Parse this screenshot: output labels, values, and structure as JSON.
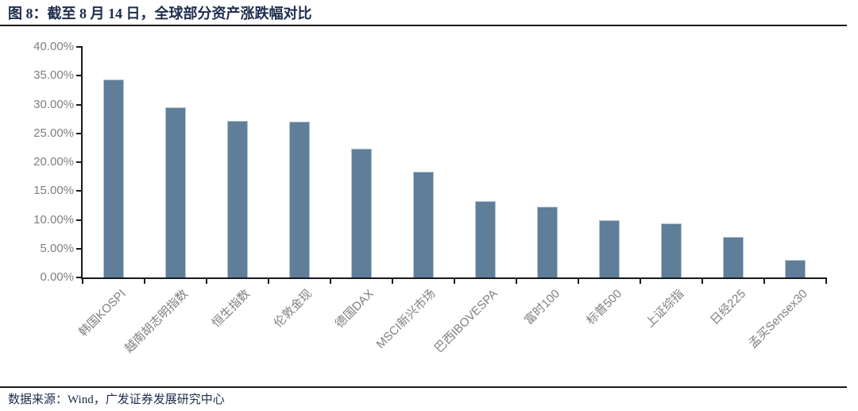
{
  "figure": {
    "title": "图 8：截至 8 月 14 日，全球部分资产涨跌幅对比",
    "source_note": "数据来源：Wind，广发证券发展研究中心"
  },
  "colors": {
    "bar_fill": "#5e7e9a",
    "bar_edge": "#b3c3d1",
    "axis_line": "#1a1a1a",
    "tick_label": "#808080",
    "title_text": "#1e2d4d",
    "divider": "#1a1a1a"
  },
  "chart_data": {
    "type": "bar",
    "title": "截至8月14日，全球部分资产涨跌幅对比",
    "categories": [
      "韩国KOSPI",
      "越南胡志明指数",
      "恒生指数",
      "伦敦金现",
      "德国DAX",
      "MSCI新兴市场",
      "巴西IBOVESPA",
      "富时100",
      "标普500",
      "上证综指",
      "日经225",
      "孟买Sensex30"
    ],
    "values": [
      34.4,
      29.5,
      27.2,
      27.1,
      22.4,
      18.3,
      13.3,
      12.3,
      10.0,
      9.4,
      7.0,
      3.1
    ],
    "unit": "%",
    "xlabel": "",
    "ylabel": "",
    "ylim": [
      0,
      40
    ],
    "ytick_step": 5,
    "ytick_labels_top_to_bottom": [
      "40.00%",
      "35.00%",
      "30.00%",
      "25.00%",
      "20.00%",
      "15.00%",
      "10.00%",
      "5.00%",
      "0.00%"
    ],
    "grid": false,
    "legend": null,
    "x_label_rotation_deg": 45
  }
}
